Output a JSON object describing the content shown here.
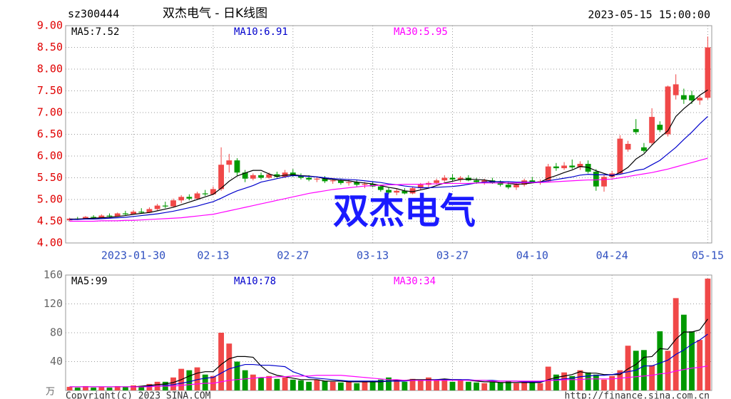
{
  "chart_data": [
    {
      "type": "candlestick",
      "code": "sz300444",
      "title": "双杰电气 - 日K线图",
      "timestamp": "2023-05-15 15:00:00",
      "watermark": "双杰电气",
      "categories": [
        null,
        null,
        null,
        null,
        null,
        null,
        null,
        null,
        "2023-01-30",
        null,
        null,
        null,
        null,
        null,
        null,
        null,
        null,
        null,
        "02-13",
        null,
        null,
        null,
        null,
        null,
        null,
        null,
        null,
        null,
        "02-27",
        null,
        null,
        null,
        null,
        null,
        null,
        null,
        null,
        null,
        "03-13",
        null,
        null,
        null,
        null,
        null,
        null,
        null,
        null,
        null,
        "03-27",
        null,
        null,
        null,
        null,
        null,
        null,
        null,
        null,
        null,
        "04-10",
        null,
        null,
        null,
        null,
        null,
        null,
        null,
        null,
        null,
        "04-24",
        null,
        null,
        null,
        null,
        null,
        null,
        null,
        null,
        null,
        null,
        null,
        "05-15"
      ],
      "open": [
        4.52,
        4.56,
        4.55,
        4.6,
        4.58,
        4.63,
        4.61,
        4.68,
        4.66,
        4.72,
        4.7,
        4.78,
        4.86,
        4.84,
        4.98,
        5.06,
        5.02,
        5.14,
        5.12,
        5.24,
        5.8,
        5.9,
        5.62,
        5.48,
        5.56,
        5.5,
        5.58,
        5.52,
        5.62,
        5.55,
        5.5,
        5.46,
        5.48,
        5.42,
        5.44,
        5.38,
        5.4,
        5.34,
        5.36,
        5.3,
        5.22,
        5.16,
        5.2,
        5.14,
        5.26,
        5.34,
        5.38,
        5.44,
        5.5,
        5.46,
        5.5,
        5.44,
        5.4,
        5.44,
        5.38,
        5.34,
        5.28,
        5.34,
        5.44,
        5.4,
        5.42,
        5.76,
        5.72,
        5.78,
        5.74,
        5.82,
        5.64,
        5.3,
        5.52,
        5.6,
        6.15,
        6.62,
        6.2,
        6.3,
        6.72,
        6.5,
        7.4,
        7.4,
        7.4,
        7.28,
        7.34
      ],
      "high": [
        4.58,
        4.6,
        4.62,
        4.64,
        4.66,
        4.68,
        4.7,
        4.74,
        4.76,
        4.8,
        4.82,
        4.9,
        4.95,
        5.02,
        5.1,
        5.12,
        5.18,
        5.22,
        5.3,
        6.2,
        6.05,
        5.95,
        5.68,
        5.6,
        5.62,
        5.62,
        5.64,
        5.68,
        5.7,
        5.6,
        5.56,
        5.52,
        5.54,
        5.5,
        5.48,
        5.46,
        5.46,
        5.4,
        5.42,
        5.34,
        5.28,
        5.24,
        5.26,
        5.3,
        5.38,
        5.42,
        5.48,
        5.56,
        5.58,
        5.54,
        5.56,
        5.5,
        5.48,
        5.5,
        5.44,
        5.4,
        5.38,
        5.48,
        5.52,
        5.46,
        5.82,
        5.84,
        5.86,
        5.92,
        5.88,
        5.9,
        5.7,
        5.58,
        5.66,
        6.48,
        6.35,
        6.85,
        6.3,
        7.1,
        6.8,
        7.62,
        7.88,
        7.55,
        7.5,
        7.4,
        8.75
      ],
      "low": [
        4.5,
        4.53,
        4.54,
        4.56,
        4.57,
        4.6,
        4.6,
        4.64,
        4.65,
        4.68,
        4.69,
        4.75,
        4.8,
        4.83,
        4.92,
        4.98,
        5.0,
        5.08,
        5.1,
        5.2,
        5.62,
        5.55,
        5.4,
        5.44,
        5.46,
        5.48,
        5.5,
        5.5,
        5.52,
        5.46,
        5.42,
        5.4,
        5.38,
        5.36,
        5.34,
        5.32,
        5.3,
        5.26,
        5.28,
        5.18,
        5.12,
        5.1,
        5.12,
        5.12,
        5.22,
        5.28,
        5.34,
        5.4,
        5.42,
        5.4,
        5.42,
        5.36,
        5.34,
        5.36,
        5.3,
        5.24,
        5.22,
        5.3,
        5.38,
        5.34,
        5.4,
        5.66,
        5.68,
        5.7,
        5.68,
        5.6,
        5.2,
        5.18,
        5.48,
        5.58,
        6.1,
        6.5,
        6.08,
        6.25,
        6.55,
        6.45,
        7.3,
        7.2,
        7.2,
        7.18,
        7.3
      ],
      "close": [
        4.56,
        4.55,
        4.6,
        4.58,
        4.63,
        4.61,
        4.68,
        4.66,
        4.72,
        4.7,
        4.78,
        4.86,
        4.84,
        4.98,
        5.06,
        5.02,
        5.14,
        5.12,
        5.24,
        5.8,
        5.9,
        5.62,
        5.48,
        5.56,
        5.5,
        5.58,
        5.52,
        5.62,
        5.55,
        5.5,
        5.46,
        5.48,
        5.42,
        5.44,
        5.38,
        5.4,
        5.34,
        5.36,
        5.3,
        5.22,
        5.16,
        5.2,
        5.14,
        5.26,
        5.34,
        5.38,
        5.44,
        5.5,
        5.46,
        5.5,
        5.44,
        5.4,
        5.44,
        5.38,
        5.34,
        5.28,
        5.34,
        5.44,
        5.4,
        5.42,
        5.76,
        5.72,
        5.78,
        5.74,
        5.82,
        5.64,
        5.3,
        5.52,
        5.6,
        6.4,
        6.28,
        6.55,
        6.12,
        6.9,
        6.6,
        7.6,
        7.65,
        7.3,
        7.28,
        7.34,
        8.5
      ],
      "up_color": "#f04848",
      "down_color": "#009900",
      "lines": [
        {
          "name": "MA5:7.52",
          "color": "#000000",
          "values": [
            4.55,
            4.55,
            4.56,
            4.57,
            4.58,
            4.59,
            4.61,
            4.63,
            4.66,
            4.68,
            4.7,
            4.74,
            4.78,
            4.82,
            4.88,
            4.94,
            5.0,
            5.06,
            5.12,
            5.26,
            5.42,
            5.54,
            5.61,
            5.67,
            5.67,
            5.59,
            5.53,
            5.56,
            5.57,
            5.55,
            5.54,
            5.52,
            5.48,
            5.46,
            5.44,
            5.43,
            5.4,
            5.38,
            5.36,
            5.32,
            5.28,
            5.25,
            5.2,
            5.18,
            5.22,
            5.26,
            5.32,
            5.38,
            5.42,
            5.46,
            5.47,
            5.46,
            5.45,
            5.42,
            5.4,
            5.37,
            5.35,
            5.36,
            5.38,
            5.4,
            5.49,
            5.55,
            5.62,
            5.68,
            5.76,
            5.74,
            5.66,
            5.6,
            5.54,
            5.62,
            5.74,
            5.93,
            6.05,
            6.25,
            6.43,
            6.58,
            6.91,
            7.09,
            7.24,
            7.4,
            7.52
          ]
        },
        {
          "name": "MA10:6.91",
          "color": "#0000cc",
          "values": [
            4.54,
            4.54,
            4.55,
            4.55,
            4.56,
            4.57,
            4.58,
            4.59,
            4.61,
            4.63,
            4.65,
            4.67,
            4.7,
            4.73,
            4.77,
            4.81,
            4.85,
            4.9,
            4.95,
            5.03,
            5.12,
            5.2,
            5.26,
            5.32,
            5.4,
            5.44,
            5.48,
            5.52,
            5.55,
            5.54,
            5.53,
            5.52,
            5.5,
            5.48,
            5.47,
            5.46,
            5.45,
            5.43,
            5.41,
            5.39,
            5.36,
            5.34,
            5.31,
            5.29,
            5.27,
            5.27,
            5.28,
            5.29,
            5.3,
            5.32,
            5.35,
            5.38,
            5.4,
            5.41,
            5.41,
            5.41,
            5.4,
            5.4,
            5.4,
            5.4,
            5.43,
            5.46,
            5.49,
            5.52,
            5.56,
            5.58,
            5.57,
            5.57,
            5.56,
            5.58,
            5.62,
            5.67,
            5.7,
            5.8,
            5.9,
            6.05,
            6.2,
            6.38,
            6.55,
            6.74,
            6.91
          ]
        },
        {
          "name": "MA30:5.95",
          "color": "#ff00ff",
          "values": [
            4.5,
            4.5,
            4.5,
            4.5,
            4.51,
            4.51,
            4.51,
            4.52,
            4.52,
            4.53,
            4.54,
            4.55,
            4.56,
            4.57,
            4.58,
            4.6,
            4.62,
            4.64,
            4.66,
            4.7,
            4.74,
            4.78,
            4.82,
            4.86,
            4.9,
            4.94,
            4.98,
            5.02,
            5.06,
            5.1,
            5.14,
            5.17,
            5.2,
            5.23,
            5.25,
            5.27,
            5.29,
            5.31,
            5.32,
            5.33,
            5.34,
            5.34,
            5.35,
            5.35,
            5.35,
            5.36,
            5.36,
            5.37,
            5.37,
            5.37,
            5.37,
            5.38,
            5.38,
            5.38,
            5.38,
            5.38,
            5.38,
            5.39,
            5.39,
            5.39,
            5.4,
            5.41,
            5.42,
            5.43,
            5.44,
            5.45,
            5.45,
            5.46,
            5.47,
            5.5,
            5.53,
            5.56,
            5.59,
            5.62,
            5.66,
            5.7,
            5.75,
            5.8,
            5.85,
            5.9,
            5.95
          ]
        }
      ],
      "ylim": [
        4,
        9
      ],
      "yticks": [
        {
          "value": 4,
          "label": "4.00"
        },
        {
          "value": 4.5,
          "label": "4.50"
        },
        {
          "value": 5,
          "label": "5.00"
        },
        {
          "value": 5.5,
          "label": "5.50"
        },
        {
          "value": 6,
          "label": "6.00"
        },
        {
          "value": 6.5,
          "label": "6.50"
        },
        {
          "value": 7,
          "label": "7.00"
        },
        {
          "value": 7.5,
          "label": "7.50"
        },
        {
          "value": 8,
          "label": "8.00"
        },
        {
          "value": 8.5,
          "label": "8.50"
        },
        {
          "value": 9,
          "label": "9.00"
        }
      ],
      "grid": true
    },
    {
      "type": "bar",
      "unit": "万",
      "values": [
        5,
        4,
        6,
        4,
        5,
        4,
        6,
        5,
        7,
        6,
        9,
        12,
        12,
        18,
        30,
        28,
        32,
        22,
        20,
        80,
        65,
        40,
        28,
        22,
        18,
        20,
        16,
        18,
        15,
        14,
        12,
        15,
        13,
        12,
        11,
        13,
        10,
        12,
        12,
        15,
        18,
        14,
        12,
        16,
        14,
        18,
        15,
        16,
        12,
        14,
        12,
        11,
        10,
        12,
        11,
        13,
        10,
        12,
        11,
        10,
        33,
        22,
        25,
        20,
        28,
        25,
        22,
        15,
        20,
        28,
        62,
        55,
        56,
        35,
        82,
        55,
        128,
        105,
        82,
        70,
        155
      ],
      "lines": [
        {
          "name": "MA5:99",
          "color": "#000000",
          "values": [
            5,
            5,
            5,
            5,
            5,
            5,
            5,
            5,
            5,
            6,
            7,
            8,
            9,
            11,
            15,
            20,
            24,
            26,
            26,
            36,
            44,
            47,
            47,
            46,
            34,
            25,
            21,
            19,
            17,
            15,
            15,
            15,
            13,
            13,
            13,
            12,
            12,
            12,
            12,
            12,
            13,
            14,
            14,
            15,
            15,
            15,
            15,
            16,
            15,
            15,
            14,
            13,
            12,
            12,
            11,
            11,
            11,
            11,
            11,
            11,
            15,
            18,
            20,
            22,
            26,
            24,
            24,
            22,
            22,
            22,
            30,
            36,
            46,
            47,
            58,
            57,
            71,
            81,
            81,
            84,
            99
          ]
        },
        {
          "name": "MA10:78",
          "color": "#0000cc",
          "values": [
            5,
            5,
            5,
            5,
            5,
            5,
            5,
            5,
            5,
            5,
            6,
            6,
            7,
            8,
            10,
            12,
            15,
            17,
            18,
            24,
            30,
            33,
            36,
            36,
            35,
            35,
            34,
            33,
            26,
            22,
            18,
            17,
            16,
            15,
            14,
            13,
            13,
            13,
            13,
            13,
            13,
            13,
            13,
            14,
            14,
            14,
            15,
            15,
            15,
            15,
            15,
            14,
            14,
            14,
            13,
            13,
            13,
            12,
            12,
            12,
            14,
            15,
            16,
            17,
            19,
            20,
            21,
            21,
            22,
            24,
            26,
            28,
            34,
            34,
            38,
            42,
            50,
            56,
            64,
            70,
            78
          ]
        },
        {
          "name": "MA30:34",
          "color": "#ff00ff",
          "values": [
            5,
            5,
            5,
            5,
            5,
            5,
            5,
            5,
            5,
            5,
            5,
            6,
            6,
            6,
            7,
            8,
            9,
            10,
            10,
            12,
            14,
            15,
            16,
            17,
            18,
            18,
            19,
            19,
            20,
            20,
            20,
            21,
            21,
            21,
            21,
            20,
            19,
            18,
            17,
            16,
            15,
            15,
            14,
            14,
            14,
            14,
            14,
            14,
            14,
            14,
            14,
            14,
            14,
            13,
            13,
            13,
            13,
            13,
            13,
            13,
            14,
            14,
            15,
            15,
            15,
            16,
            16,
            16,
            16,
            17,
            18,
            19,
            20,
            21,
            23,
            24,
            27,
            29,
            31,
            32,
            34
          ]
        }
      ],
      "ylim": [
        0,
        160
      ],
      "yticks": [
        40,
        80,
        120,
        160
      ],
      "grid": true
    }
  ],
  "footer": {
    "left": "Copyright(c) 2023 SINA.COM",
    "right": "http://finance.sina.com.cn"
  }
}
